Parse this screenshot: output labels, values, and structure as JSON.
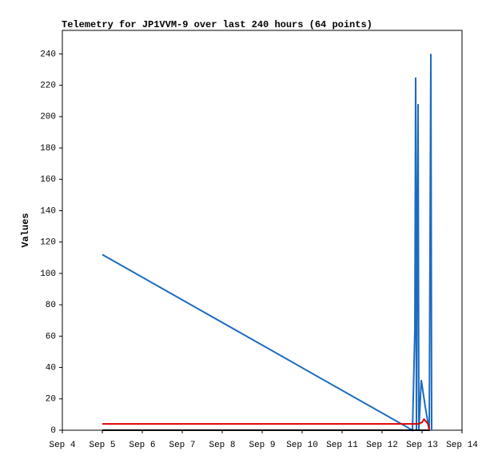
{
  "chart_data": {
    "type": "line",
    "title": "Telemetry for JP1VVM-9 over last 240 hours (64 points)",
    "y_label": "Values",
    "xlim": [
      4,
      14
    ],
    "xticks": [
      {
        "value": 4,
        "label": "Sep 4"
      },
      {
        "value": 5,
        "label": "Sep 5"
      },
      {
        "value": 6,
        "label": "Sep 6"
      },
      {
        "value": 7,
        "label": "Sep 7"
      },
      {
        "value": 8,
        "label": "Sep 8"
      },
      {
        "value": 9,
        "label": "Sep 9"
      },
      {
        "value": 10,
        "label": "Sep 10"
      },
      {
        "value": 11,
        "label": "Sep 11"
      },
      {
        "value": 12,
        "label": "Sep 12"
      },
      {
        "value": 13,
        "label": "Sep 13"
      },
      {
        "value": 14,
        "label": "Sep 14"
      }
    ],
    "ylim": [
      0,
      255
    ],
    "yticks": [
      0,
      20,
      40,
      60,
      80,
      100,
      120,
      140,
      160,
      180,
      200,
      220,
      240
    ],
    "grid": false,
    "series": [
      {
        "color": "#1c6bc0",
        "x": [
          5.0,
          12.76,
          12.82,
          12.84,
          12.86,
          12.88,
          12.9,
          12.92,
          12.98,
          13.08,
          13.18,
          13.2,
          13.22,
          13.24
        ],
        "values": [
          112,
          0,
          64,
          225,
          0,
          128,
          208,
          0,
          32,
          15,
          0,
          120,
          240,
          0
        ]
      },
      {
        "color": "#000000",
        "x": [
          5.0,
          13.2
        ],
        "values": [
          0,
          0
        ]
      },
      {
        "color": "#dd0000",
        "x": [
          5.0,
          12.9,
          13.0,
          13.05,
          13.15,
          13.18
        ],
        "values": [
          4,
          4,
          5,
          7,
          4,
          0
        ]
      }
    ]
  }
}
